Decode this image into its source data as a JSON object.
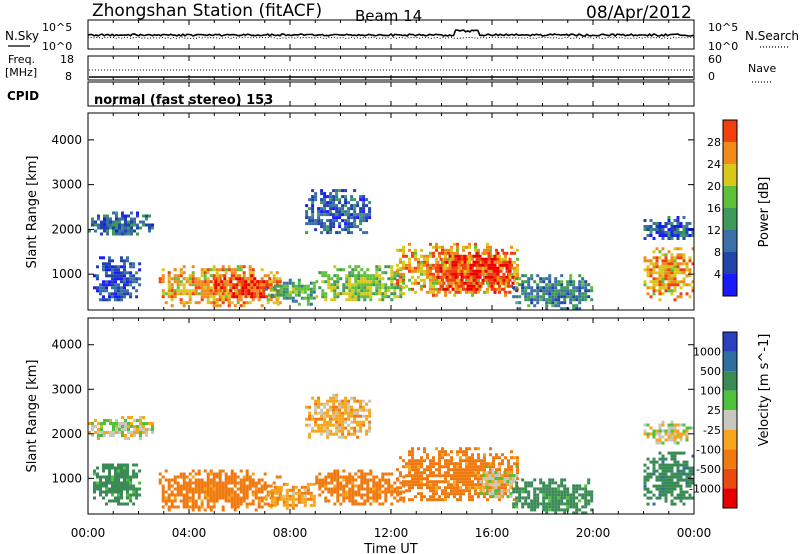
{
  "header": {
    "station": "Zhongshan Station (fitACF)",
    "beam": "Beam 14",
    "date": "08/Apr/2012"
  },
  "top_panel": {
    "left_label": "N.Sky",
    "left_ticks": [
      "10^5",
      "10^0"
    ],
    "right_label": "N.Search",
    "right_ticks": [
      "10^5",
      "10^0"
    ]
  },
  "freq_panel": {
    "left_label_1": "Freq.",
    "left_label_2": "[MHz]",
    "left_ticks": [
      "18",
      "8"
    ],
    "right_label": "Nave",
    "right_ticks": [
      "60",
      "0"
    ]
  },
  "cpid": {
    "label": "CPID",
    "value": "normal (fast stereo) 153"
  },
  "colors": {
    "power_scale": [
      "#1a1aff",
      "#2244aa",
      "#3a6fa8",
      "#3e9a5a",
      "#5fc03a",
      "#d8c81a",
      "#f08a1a",
      "#f04010",
      "#ee0000"
    ],
    "velocity_scale": [
      "#2a40c0",
      "#2e6ea0",
      "#3a8a55",
      "#4ec23c",
      "#c8c8c0",
      "#f7a51a",
      "#f07a10",
      "#e84a10",
      "#e80000"
    ]
  },
  "chart_data": [
    {
      "type": "heatmap",
      "name": "power",
      "ylabel": "Slant Range [km]",
      "yticks": [
        "1000",
        "2000",
        "3000",
        "4000"
      ],
      "ylim": [
        200,
        4600
      ],
      "x_axis": "time UT 00:00-24:00",
      "colorbar_label": "Power [dB]",
      "colorbar_ticks": [
        "4",
        "8",
        "12",
        "16",
        "20",
        "24",
        "28"
      ],
      "clim": [
        0,
        32
      ],
      "features": [
        {
          "t": [
            0.0,
            2.6
          ],
          "r": [
            1900,
            2400
          ],
          "value": 8
        },
        {
          "t": [
            0.2,
            2.0
          ],
          "r": [
            400,
            1400
          ],
          "value": 6
        },
        {
          "t": [
            2.8,
            7.6
          ],
          "r": [
            300,
            1200
          ],
          "value": 22
        },
        {
          "t": [
            5.0,
            7.2
          ],
          "r": [
            500,
            1000
          ],
          "value": 28
        },
        {
          "t": [
            7.0,
            9.0
          ],
          "r": [
            350,
            900
          ],
          "value": 14
        },
        {
          "t": [
            8.6,
            11.2
          ],
          "r": [
            1900,
            2900
          ],
          "value": 7
        },
        {
          "t": [
            9.0,
            12.5
          ],
          "r": [
            400,
            1200
          ],
          "value": 16
        },
        {
          "t": [
            12.2,
            17.0
          ],
          "r": [
            500,
            1700
          ],
          "value": 22
        },
        {
          "t": [
            13.8,
            16.8
          ],
          "r": [
            600,
            1500
          ],
          "value": 28
        },
        {
          "t": [
            16.8,
            20.0
          ],
          "r": [
            250,
            1000
          ],
          "value": 10
        },
        {
          "t": [
            22.0,
            24.0
          ],
          "r": [
            450,
            1600
          ],
          "value": 22
        },
        {
          "t": [
            22.0,
            24.0
          ],
          "r": [
            1800,
            2300
          ],
          "value": 7
        }
      ]
    },
    {
      "type": "heatmap",
      "name": "velocity",
      "ylabel": "Slant Range [km]",
      "yticks": [
        "1000",
        "2000",
        "3000",
        "4000"
      ],
      "ylim": [
        200,
        4600
      ],
      "xlabel": "Time UT",
      "xticks": [
        "00:00",
        "04:00",
        "08:00",
        "12:00",
        "16:00",
        "20:00",
        "00:00"
      ],
      "xlim": [
        0,
        24
      ],
      "colorbar_label": "Velocity [m s^-1]",
      "colorbar_ticks": [
        "1000",
        "500",
        "100",
        "25",
        "-25",
        "-100",
        "-500",
        "-1000"
      ],
      "features": [
        {
          "t": [
            0.0,
            2.6
          ],
          "r": [
            1900,
            2400
          ],
          "value": 0
        },
        {
          "t": [
            0.2,
            2.0
          ],
          "r": [
            400,
            1400
          ],
          "value": 150
        },
        {
          "t": [
            2.8,
            7.6
          ],
          "r": [
            300,
            1200
          ],
          "value": -150
        },
        {
          "t": [
            7.0,
            9.0
          ],
          "r": [
            350,
            900
          ],
          "value": -80
        },
        {
          "t": [
            8.6,
            11.2
          ],
          "r": [
            1900,
            2900
          ],
          "value": -60
        },
        {
          "t": [
            9.0,
            12.5
          ],
          "r": [
            400,
            1200
          ],
          "value": -150
        },
        {
          "t": [
            12.2,
            17.0
          ],
          "r": [
            500,
            1700
          ],
          "value": -150
        },
        {
          "t": [
            15.5,
            17.0
          ],
          "r": [
            600,
            1300
          ],
          "value": 0
        },
        {
          "t": [
            16.8,
            20.0
          ],
          "r": [
            250,
            1000
          ],
          "value": 150
        },
        {
          "t": [
            22.0,
            24.0
          ],
          "r": [
            450,
            1600
          ],
          "value": 200
        },
        {
          "t": [
            22.0,
            24.0
          ],
          "r": [
            1800,
            2300
          ],
          "value": 0
        }
      ]
    }
  ]
}
